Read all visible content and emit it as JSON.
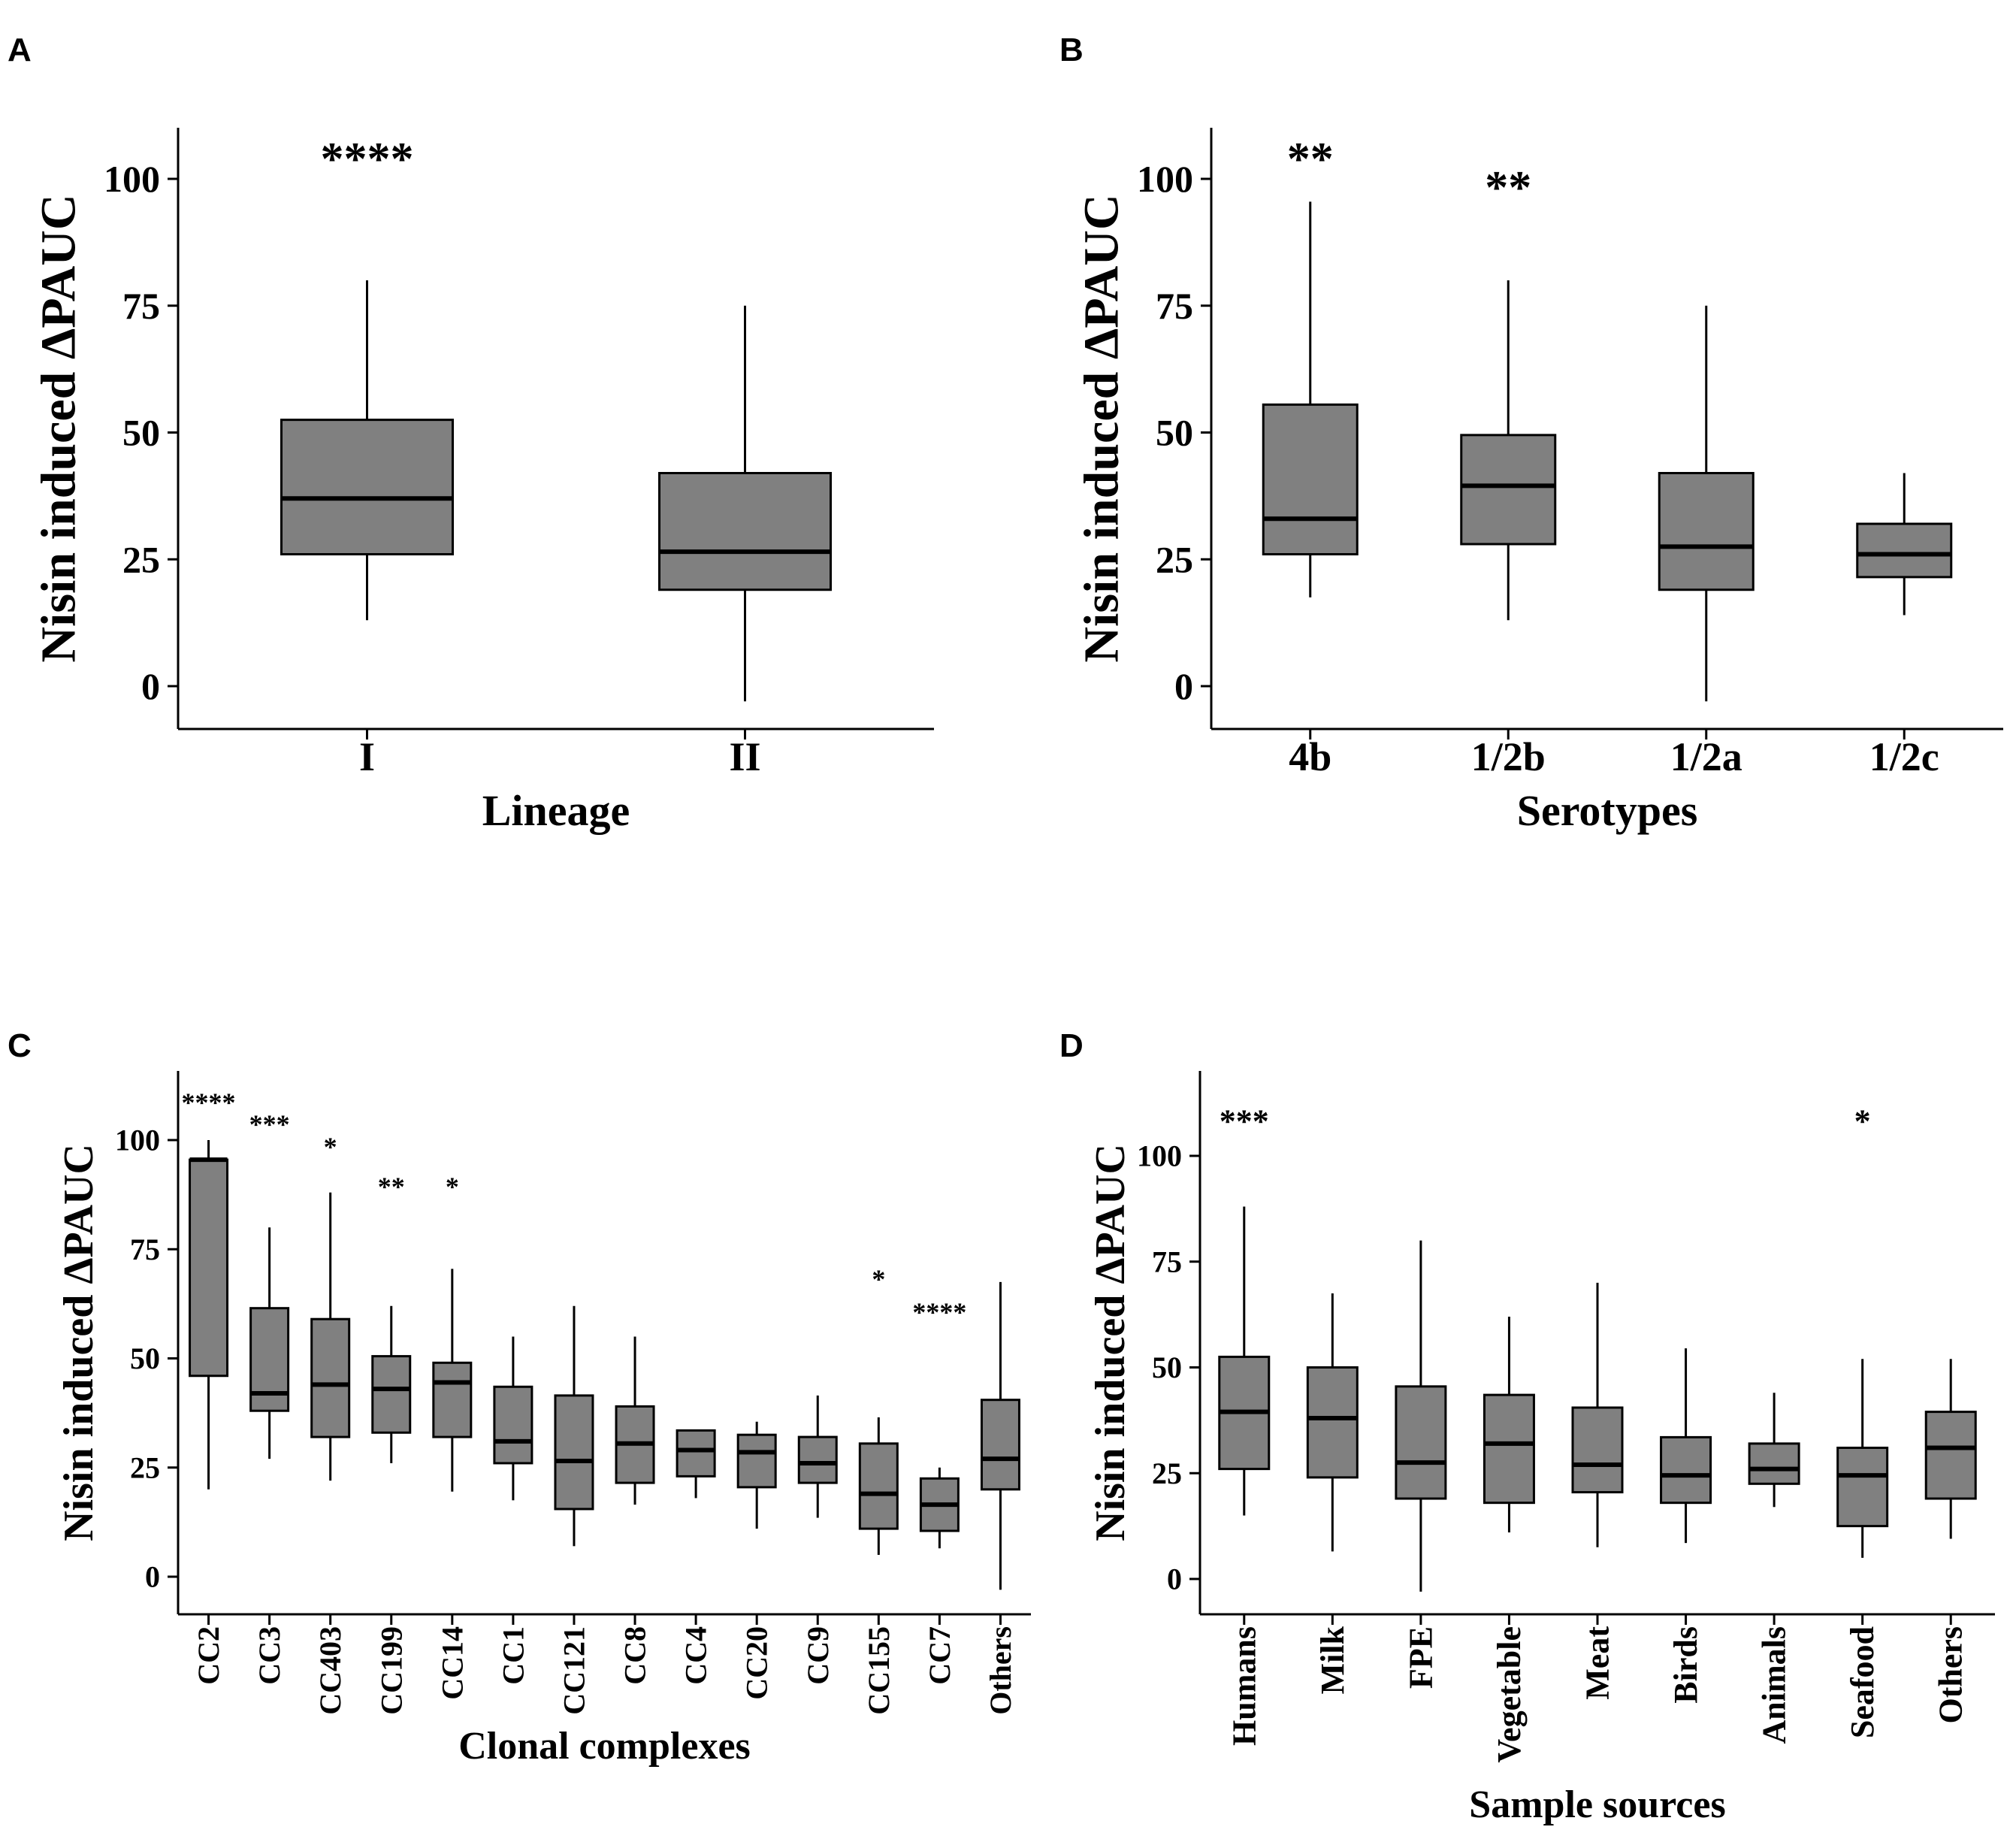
{
  "chart_data": [
    {
      "type": "box",
      "panel": "A",
      "title": "",
      "xlabel": "Lineage",
      "ylabel": "Nisin induced ΔPAUC",
      "ylim": [
        -8,
        110
      ],
      "yticks": [
        0,
        25,
        50,
        75,
        100
      ],
      "box_color": "#808080",
      "categories": [
        "I",
        "II"
      ],
      "boxes": [
        {
          "min": 13,
          "q1": 26,
          "median": 37,
          "q3": 52.5,
          "max": 80,
          "sig": "****"
        },
        {
          "min": -3,
          "q1": 19,
          "median": 26.5,
          "q3": 42,
          "max": 75,
          "sig": ""
        }
      ]
    },
    {
      "type": "box",
      "panel": "B",
      "title": "",
      "xlabel": "Serotypes",
      "ylabel": "Nisin induced ΔPAUC",
      "ylim": [
        -8,
        110
      ],
      "yticks": [
        0,
        25,
        50,
        75,
        100
      ],
      "box_color": "#808080",
      "categories": [
        "4b",
        "1/2b",
        "1/2a",
        "1/2c"
      ],
      "boxes": [
        {
          "min": 17.5,
          "q1": 26,
          "median": 33,
          "q3": 55.5,
          "max": 95.5,
          "sig": "**"
        },
        {
          "min": 13,
          "q1": 28,
          "median": 39.5,
          "q3": 49.5,
          "max": 80,
          "sig": "**"
        },
        {
          "min": -3,
          "q1": 19,
          "median": 27.5,
          "q3": 42,
          "max": 75,
          "sig": ""
        },
        {
          "min": 14,
          "q1": 21.5,
          "median": 26,
          "q3": 32,
          "max": 42,
          "sig": ""
        }
      ]
    },
    {
      "type": "box",
      "panel": "C",
      "title": "",
      "xlabel": "Clonal complexes",
      "ylabel": "Nisin induced ΔPAUC",
      "ylim": [
        -8,
        115
      ],
      "yticks": [
        0,
        25,
        50,
        75,
        100
      ],
      "box_color": "#808080",
      "categories": [
        "CC2",
        "CC3",
        "CC403",
        "CC199",
        "CC14",
        "CC1",
        "CC121",
        "CC8",
        "CC4",
        "CC20",
        "CC9",
        "CC155",
        "CC7",
        "Others"
      ],
      "boxes": [
        {
          "min": 20,
          "q1": 46,
          "median": 95.5,
          "q3": 95.5,
          "max": 100,
          "sig": "****"
        },
        {
          "min": 27,
          "q1": 38,
          "median": 42,
          "q3": 61.5,
          "max": 80,
          "sig": "***"
        },
        {
          "min": 22,
          "q1": 32,
          "median": 44,
          "q3": 59,
          "max": 88,
          "sig": "*"
        },
        {
          "min": 26,
          "q1": 33,
          "median": 43,
          "q3": 50.5,
          "max": 62,
          "sig": "**"
        },
        {
          "min": 19.5,
          "q1": 32,
          "median": 44.5,
          "q3": 49,
          "max": 70.5,
          "sig": "*"
        },
        {
          "min": 17.5,
          "q1": 26,
          "median": 31,
          "q3": 43.5,
          "max": 55,
          "sig": ""
        },
        {
          "min": 7,
          "q1": 15.5,
          "median": 26.5,
          "q3": 41.5,
          "max": 62,
          "sig": ""
        },
        {
          "min": 16.5,
          "q1": 21.5,
          "median": 30.5,
          "q3": 39,
          "max": 55,
          "sig": ""
        },
        {
          "min": 18,
          "q1": 23,
          "median": 29,
          "q3": 33.5,
          "max": 33.5,
          "sig": ""
        },
        {
          "min": 11,
          "q1": 20.5,
          "median": 28.5,
          "q3": 32.5,
          "max": 35.5,
          "sig": ""
        },
        {
          "min": 13.5,
          "q1": 21.5,
          "median": 26,
          "q3": 32,
          "max": 41.5,
          "sig": ""
        },
        {
          "min": 5,
          "q1": 11,
          "median": 19,
          "q3": 30.5,
          "max": 36.5,
          "sig": "*"
        },
        {
          "min": 6.5,
          "q1": 10.5,
          "median": 16.5,
          "q3": 22.5,
          "max": 25,
          "sig": "****"
        },
        {
          "min": -3,
          "q1": 20,
          "median": 27,
          "q3": 40.5,
          "max": 67.5,
          "sig": ""
        }
      ]
    },
    {
      "type": "box",
      "panel": "D",
      "title": "",
      "xlabel": "Sample sources",
      "ylabel": "Nisin induced ΔPAUC",
      "ylim": [
        -8,
        115
      ],
      "yticks": [
        0,
        25,
        50,
        75,
        100
      ],
      "box_color": "#808080",
      "categories": [
        "Humans",
        "Milk",
        "FPE",
        "Vegetable",
        "Meat",
        "Birds",
        "Animals",
        "Seafood",
        "Others"
      ],
      "boxes": [
        {
          "min": 15,
          "q1": 26,
          "median": 39.5,
          "q3": 52.5,
          "max": 88,
          "sig": "***"
        },
        {
          "min": 6.5,
          "q1": 24,
          "median": 38,
          "q3": 50,
          "max": 67.5,
          "sig": ""
        },
        {
          "min": -3,
          "q1": 19,
          "median": 27.5,
          "q3": 45.5,
          "max": 80,
          "sig": ""
        },
        {
          "min": 11,
          "q1": 18,
          "median": 32,
          "q3": 43.5,
          "max": 62,
          "sig": ""
        },
        {
          "min": 7.5,
          "q1": 20.5,
          "median": 27,
          "q3": 40.5,
          "max": 70,
          "sig": ""
        },
        {
          "min": 8.5,
          "q1": 18,
          "median": 24.5,
          "q3": 33.5,
          "max": 54.5,
          "sig": ""
        },
        {
          "min": 17,
          "q1": 22.5,
          "median": 26,
          "q3": 32,
          "max": 44,
          "sig": ""
        },
        {
          "min": 5,
          "q1": 12.5,
          "median": 24.5,
          "q3": 31,
          "max": 52,
          "sig": "*"
        },
        {
          "min": 9.5,
          "q1": 19,
          "median": 31,
          "q3": 39.5,
          "max": 52,
          "sig": ""
        }
      ]
    }
  ]
}
